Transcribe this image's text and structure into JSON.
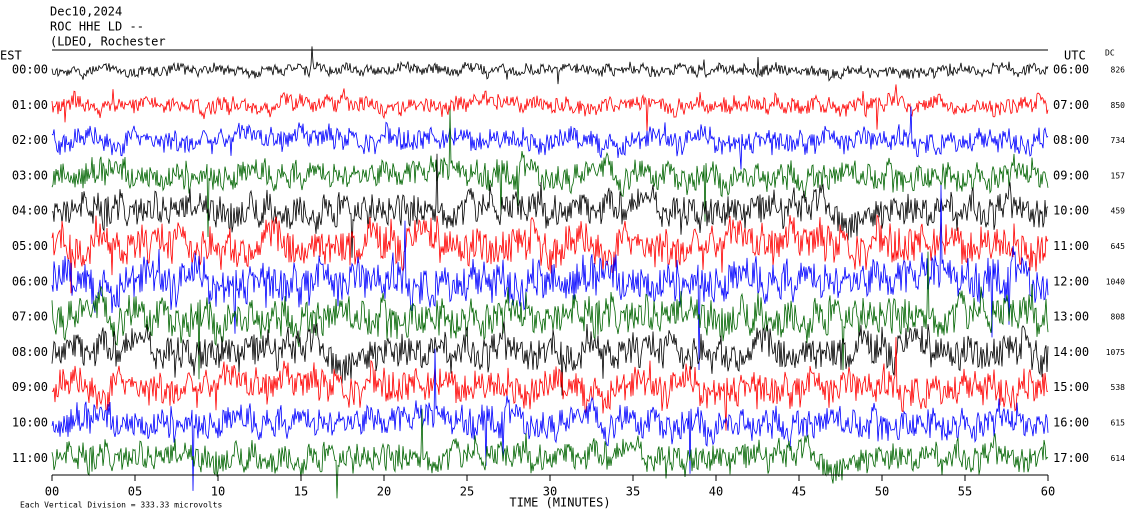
{
  "chart_data": {
    "type": "helicorder",
    "title_lines": [
      "Dec10,2024",
      "ROC HHE LD --",
      "(LDEO, Rochester"
    ],
    "left_axis_label": "EST",
    "right_axis_label": "UTC",
    "dc_label": "DC",
    "categories": [
      "00:00",
      "01:00",
      "02:00",
      "03:00",
      "04:00",
      "05:00",
      "06:00",
      "07:00",
      "08:00",
      "09:00",
      "10:00",
      "11:00"
    ],
    "right_categories": [
      "06:00",
      "07:00",
      "08:00",
      "09:00",
      "10:00",
      "11:00",
      "12:00",
      "13:00",
      "14:00",
      "15:00",
      "16:00",
      "17:00"
    ],
    "dc_values": [
      826,
      850,
      734,
      157,
      459,
      645,
      1040,
      808,
      1075,
      538,
      615,
      614
    ],
    "colors": [
      "#000000",
      "#ff0000",
      "#0000ff",
      "#006400"
    ],
    "xlim": [
      0,
      60
    ],
    "xticks": [
      {
        "value": 0,
        "label": "00"
      },
      {
        "value": 5,
        "label": "05"
      },
      10,
      15,
      20,
      25,
      30,
      35,
      40,
      45,
      50,
      55,
      60
    ],
    "xlabel": "TIME (MINUTES)",
    "footer": "Each Vertical Division =  333.33 microvolts"
  }
}
